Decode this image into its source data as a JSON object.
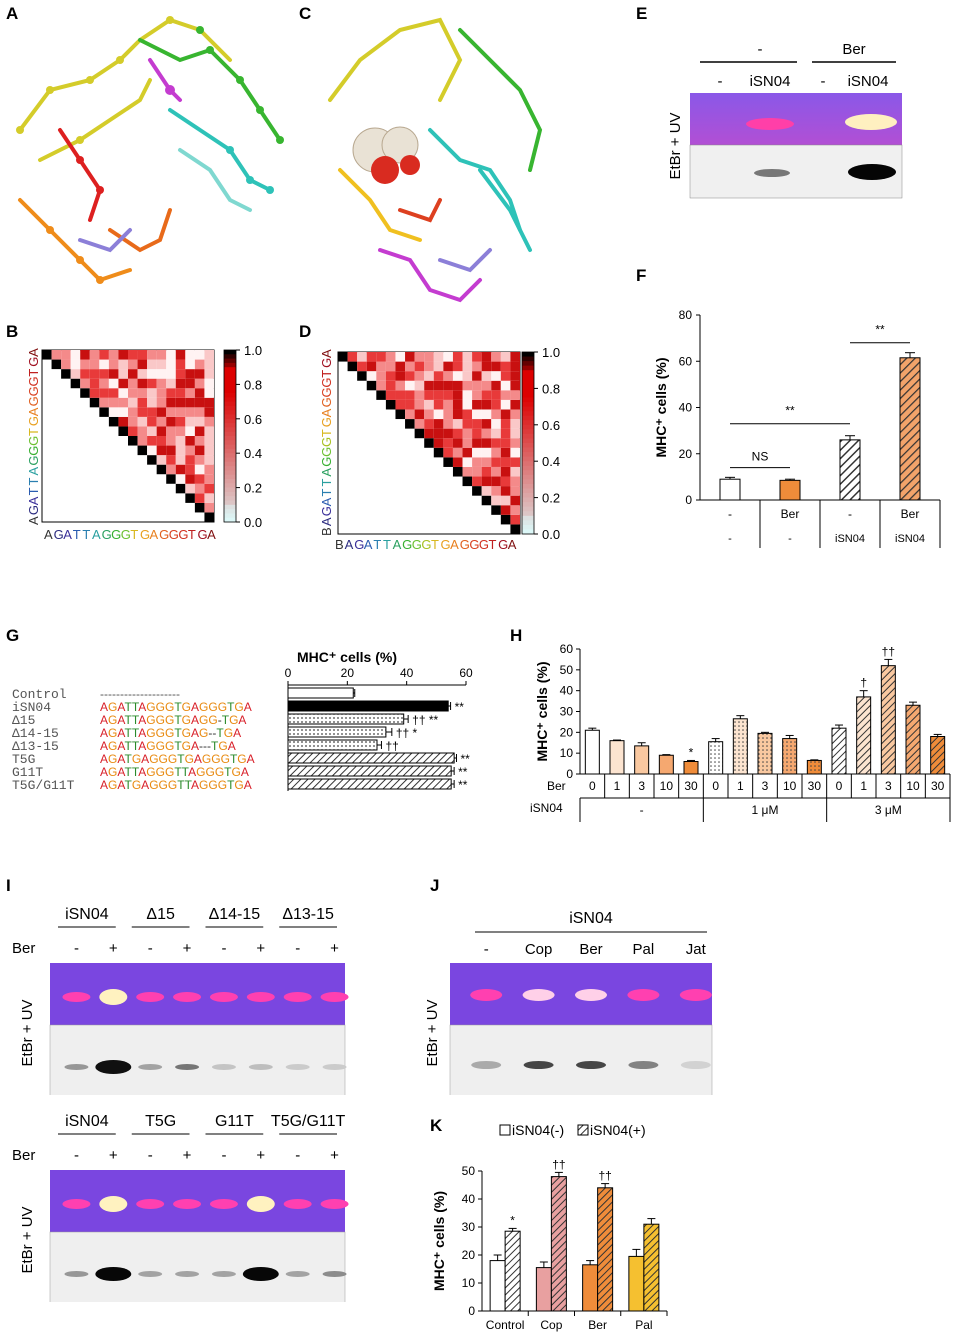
{
  "panels": {
    "A": "A",
    "B": "B",
    "C": "C",
    "D": "D",
    "E": "E",
    "F": "F",
    "G": "G",
    "H": "H",
    "I": "I",
    "J": "J",
    "K": "K"
  },
  "colorbar_ticks": [
    "1.0",
    "0.8",
    "0.6",
    "0.4",
    "0.2",
    "0.0"
  ],
  "seq_B": [
    "A",
    "G",
    "A",
    "T",
    "T",
    "A",
    "G",
    "G",
    "G",
    "T",
    "G",
    "A",
    "G",
    "G",
    "G",
    "T",
    "G",
    "A"
  ],
  "seq_D": [
    "B",
    "A",
    "G",
    "A",
    "T",
    "T",
    "A",
    "G",
    "G",
    "G",
    "T",
    "G",
    "A",
    "G",
    "G",
    "G",
    "T",
    "G",
    "A"
  ],
  "gel_label": "EtBr + UV",
  "panel_E": {
    "groups": [
      "-",
      "Ber"
    ],
    "lanes": [
      "-",
      "iSN04",
      "-",
      "iSN04"
    ]
  },
  "chart_F": {
    "type": "bar",
    "ylabel": "MHC⁺ cells (%)",
    "ylim": [
      0,
      80
    ],
    "yticks": [
      "0",
      "20",
      "40",
      "60",
      "80"
    ],
    "row1": [
      "-",
      "Ber",
      "-",
      "Ber"
    ],
    "row2": [
      "-",
      "-",
      "iSN04",
      "iSN04"
    ],
    "values": [
      9,
      8.5,
      26,
      61.5
    ],
    "errors": [
      0.8,
      0.5,
      1.8,
      2.2
    ],
    "sig": [
      "NS",
      "**",
      "**"
    ]
  },
  "chart_G": {
    "type": "bar",
    "title": "MHC⁺ cells (%)",
    "xticks": [
      "0",
      "20",
      "40",
      "60"
    ],
    "xlim": [
      0,
      60
    ],
    "names": [
      "Control",
      "iSN04",
      "Δ15",
      "Δ14-15",
      "Δ13-15",
      "T5G",
      "G11T",
      "T5G/G11T"
    ],
    "seqs": [
      "--------------------",
      "AGATTAGGGTGAGGGTGA",
      "AGATTAGGGTGAGG-TGA",
      "AGATTAGGGTGAG--TGA",
      "AGATTAGGGTGA---TGA",
      "AGATGAGGGTGAGGGTGA",
      "AGATTAGGGTTAGGGTGA",
      "AGATGAGGGTTAGGGTGA"
    ],
    "values": [
      22,
      54,
      39,
      33,
      30,
      56,
      55,
      55
    ],
    "errors": [
      0.5,
      0.8,
      1.5,
      2,
      1.5,
      0.8,
      1,
      1
    ],
    "sig": [
      "",
      "**",
      "†† **",
      "†† *",
      "††",
      "**",
      "**",
      "**"
    ]
  },
  "chart_H": {
    "type": "bar",
    "ylabel": "MHC⁺ cells (%)",
    "ylim": [
      0,
      60
    ],
    "yticks": [
      "0",
      "10",
      "20",
      "30",
      "40",
      "50",
      "60"
    ],
    "row1_label": "Ber",
    "row2_label": "iSN04",
    "ber": [
      "0",
      "1",
      "3",
      "10",
      "30",
      "0",
      "1",
      "3",
      "10",
      "30",
      "0",
      "1",
      "3",
      "10",
      "30"
    ],
    "groups": [
      "-",
      "1 μM",
      "3 μM"
    ],
    "values": [
      21,
      16,
      13.5,
      9,
      6,
      15.5,
      26.5,
      19.5,
      17,
      6.5,
      22,
      37,
      52,
      33,
      18
    ],
    "errors": [
      1,
      0.3,
      1.5,
      0.3,
      0.5,
      1.5,
      1.5,
      0.5,
      1.5,
      0.3,
      1.5,
      3,
      3,
      1.5,
      1
    ],
    "sig": [
      "",
      "",
      "",
      "",
      "*",
      "",
      "",
      "",
      "",
      "",
      "",
      "†",
      "††",
      "",
      ""
    ]
  },
  "panel_I": {
    "ber_label": "Ber",
    "top_groups": [
      "iSN04",
      "Δ15",
      "Δ14-15",
      "Δ13-15"
    ],
    "bottom_groups": [
      "iSN04",
      "T5G",
      "G11T",
      "T5G/G11T"
    ],
    "signs": [
      "-",
      "+",
      "-",
      "+",
      "-",
      "+",
      "-",
      "+"
    ]
  },
  "panel_J": {
    "title": "iSN04",
    "lanes": [
      "-",
      "Cop",
      "Ber",
      "Pal",
      "Jat"
    ]
  },
  "chart_K": {
    "type": "bar",
    "ylabel": "MHC⁺ cells (%)",
    "ylim": [
      0,
      50
    ],
    "yticks": [
      "0",
      "10",
      "20",
      "30",
      "40",
      "50"
    ],
    "legend": [
      "iSN04(-)",
      "iSN04(+)"
    ],
    "categories": [
      "Control",
      "Cop",
      "Ber",
      "Pal"
    ],
    "series": [
      {
        "name": "iSN04(-)",
        "values": [
          18,
          15.5,
          16.5,
          19.5
        ],
        "errors": [
          2,
          2,
          1.5,
          2.5
        ]
      },
      {
        "name": "iSN04(+)",
        "values": [
          28.5,
          48,
          44,
          31
        ],
        "errors": [
          1,
          1.5,
          1.5,
          2
        ]
      }
    ],
    "sig": [
      "*",
      "††",
      "††",
      ""
    ]
  }
}
